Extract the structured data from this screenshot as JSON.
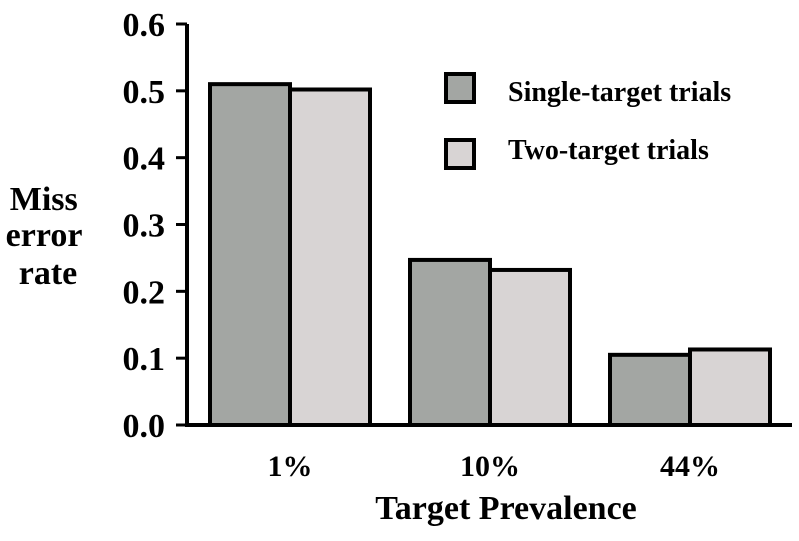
{
  "chart_data": {
    "type": "bar",
    "xlabel": "Target Prevalence",
    "ylabel_lines": [
      "Miss",
      "error",
      "rate"
    ],
    "categories": [
      "1%",
      "10%",
      "44%"
    ],
    "series": [
      {
        "name": "Single-target trials",
        "values": [
          0.51,
          0.247,
          0.105
        ],
        "color": "#a3a6a3"
      },
      {
        "name": "Two-target trials",
        "values": [
          0.502,
          0.232,
          0.113
        ],
        "color": "#d8d4d4"
      }
    ],
    "ylim": [
      0,
      0.6
    ],
    "yticks": [
      "0.0",
      "0.1",
      "0.2",
      "0.3",
      "0.4",
      "0.5",
      "0.6"
    ],
    "grid": false,
    "legend_position": "top-right"
  }
}
